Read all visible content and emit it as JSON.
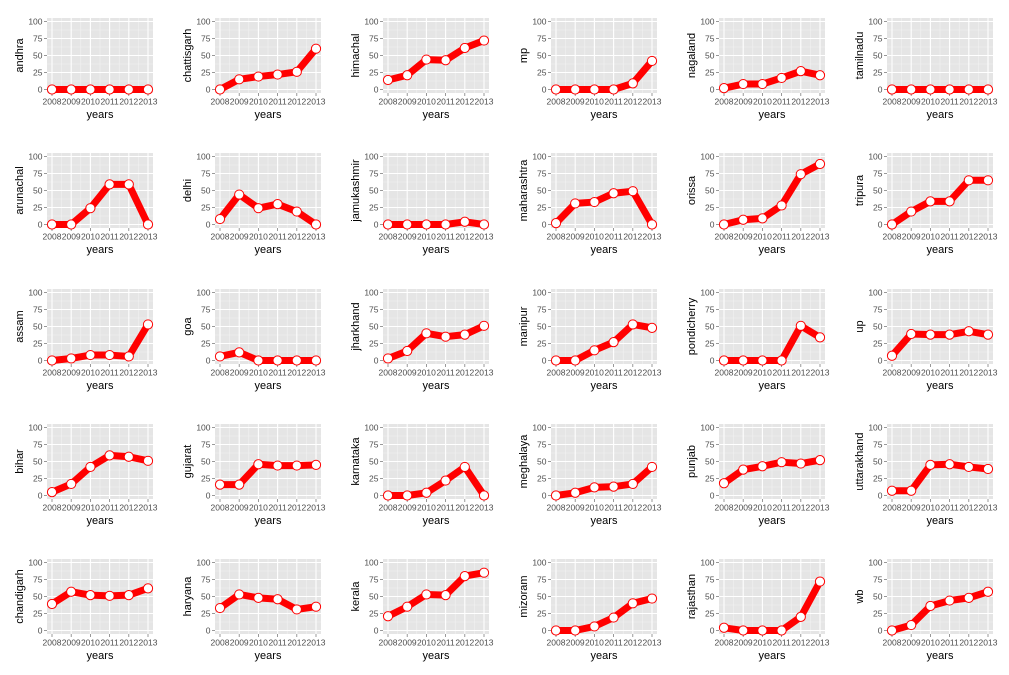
{
  "style": {
    "line_color": "#ff0000",
    "point_fill": "#ffffff",
    "point_stroke": "#ff0000",
    "panel_background": "#e5e5e5",
    "grid_color": "#ffffff"
  },
  "chart_data": {
    "type": "line",
    "layout": "facet-grid",
    "rows": 5,
    "cols": 6,
    "xlabel": "years",
    "x": [
      2008,
      2009,
      2010,
      2011,
      2012,
      2013
    ],
    "x_tick_labels": [
      "2008",
      "2009",
      "2010",
      "2011",
      "2012",
      "2013"
    ],
    "ylim": [
      0,
      100
    ],
    "y_ticks": [
      0,
      25,
      50,
      75,
      100
    ],
    "grid": true,
    "panels": [
      {
        "ylabel": "andhra",
        "values": [
          0,
          0,
          0,
          0,
          0,
          0
        ]
      },
      {
        "ylabel": "chattisgarh",
        "values": [
          0,
          15,
          19,
          22,
          26,
          60
        ]
      },
      {
        "ylabel": "himachal",
        "values": [
          14,
          21,
          44,
          43,
          61,
          72
        ]
      },
      {
        "ylabel": "mp",
        "values": [
          0,
          0,
          0,
          0,
          9,
          42
        ]
      },
      {
        "ylabel": "nagaland",
        "values": [
          2,
          8,
          8,
          17,
          27,
          21
        ]
      },
      {
        "ylabel": "tamilnadu",
        "values": [
          0,
          0,
          0,
          0,
          0,
          0
        ]
      },
      {
        "ylabel": "arunachal",
        "values": [
          0,
          0,
          24,
          59,
          59,
          0
        ]
      },
      {
        "ylabel": "delhi",
        "values": [
          8,
          44,
          24,
          30,
          19,
          0
        ]
      },
      {
        "ylabel": "jamukashmir",
        "values": [
          0,
          0,
          0,
          0,
          4,
          0
        ]
      },
      {
        "ylabel": "maharashtra",
        "values": [
          2,
          31,
          33,
          46,
          49,
          0
        ]
      },
      {
        "ylabel": "orissa",
        "values": [
          0,
          7,
          9,
          28,
          74,
          89
        ]
      },
      {
        "ylabel": "tripura",
        "values": [
          0,
          19,
          34,
          34,
          65,
          65
        ]
      },
      {
        "ylabel": "assam",
        "values": [
          0,
          3,
          8,
          8,
          6,
          53
        ]
      },
      {
        "ylabel": "goa",
        "values": [
          6,
          12,
          0,
          0,
          0,
          0
        ]
      },
      {
        "ylabel": "jharkhand",
        "values": [
          3,
          14,
          40,
          35,
          38,
          51
        ]
      },
      {
        "ylabel": "manipur",
        "values": [
          0,
          0,
          15,
          27,
          53,
          48
        ]
      },
      {
        "ylabel": "pondicherry",
        "values": [
          0,
          0,
          0,
          0,
          51,
          34
        ]
      },
      {
        "ylabel": "up",
        "values": [
          7,
          39,
          38,
          38,
          43,
          38
        ]
      },
      {
        "ylabel": "bihar",
        "values": [
          5,
          17,
          42,
          59,
          57,
          51
        ]
      },
      {
        "ylabel": "gujarat",
        "values": [
          16,
          16,
          46,
          44,
          44,
          45
        ]
      },
      {
        "ylabel": "karnataka",
        "values": [
          0,
          0,
          4,
          22,
          42,
          0
        ]
      },
      {
        "ylabel": "meghalaya",
        "values": [
          0,
          4,
          12,
          13,
          17,
          42
        ]
      },
      {
        "ylabel": "punjab",
        "values": [
          18,
          38,
          43,
          49,
          47,
          52
        ]
      },
      {
        "ylabel": "uttarakhand",
        "values": [
          7,
          7,
          45,
          46,
          42,
          39
        ]
      },
      {
        "ylabel": "chandigarh",
        "values": [
          39,
          57,
          52,
          51,
          52,
          62
        ]
      },
      {
        "ylabel": "haryana",
        "values": [
          33,
          53,
          48,
          46,
          31,
          35
        ]
      },
      {
        "ylabel": "kerala",
        "values": [
          21,
          35,
          53,
          52,
          80,
          85
        ]
      },
      {
        "ylabel": "mizoram",
        "values": [
          0,
          0,
          6,
          19,
          40,
          47
        ]
      },
      {
        "ylabel": "rajasthan",
        "values": [
          4,
          0,
          0,
          0,
          20,
          72
        ]
      },
      {
        "ylabel": "wb",
        "values": [
          0,
          8,
          36,
          44,
          48,
          57
        ]
      }
    ]
  }
}
